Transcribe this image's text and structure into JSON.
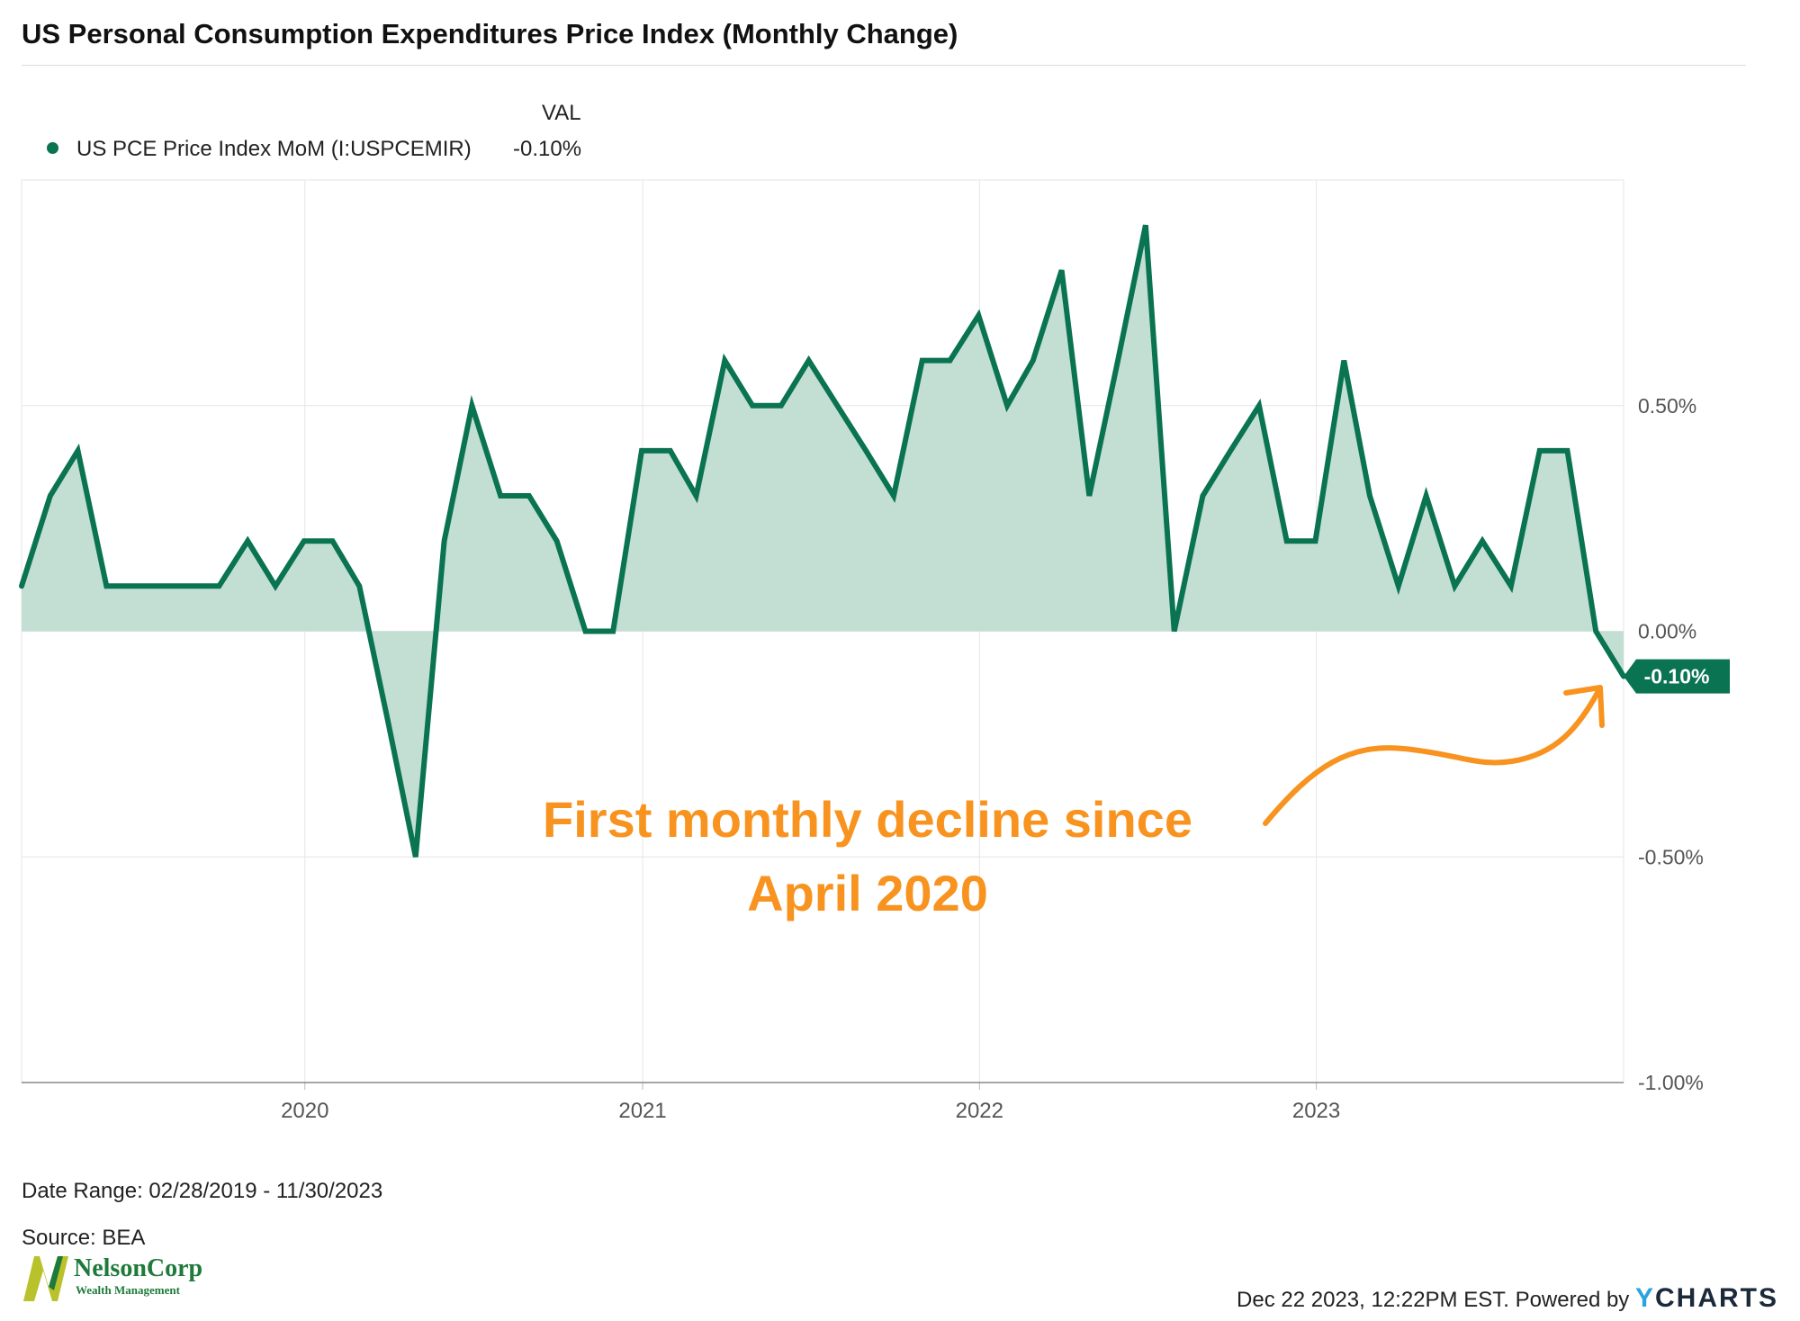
{
  "title": "US Personal Consumption Expenditures Price Index (Monthly Change)",
  "legend": {
    "header": "VAL",
    "series_label": "US PCE Price Index MoM (I:USPCEMIR)",
    "series_value": "-0.10%"
  },
  "colors": {
    "line": "#0a7351",
    "fill": "#c3dfd3",
    "annotation": "#f7931e",
    "grid": "#e6e6e6"
  },
  "annotation": {
    "line1": "First monthly decline since",
    "line2": "April 2020"
  },
  "footer": {
    "date_range": "Date Range: 02/28/2019 - 11/30/2023",
    "source": "Source: BEA",
    "powered": "Dec 22 2023, 12:22PM EST. Powered by",
    "brand": "CHARTS",
    "brand_letter": "Y"
  },
  "logo": {
    "name": "NelsonCorp",
    "subtitle": "Wealth Management"
  },
  "chart_data": {
    "type": "area",
    "title": "US Personal Consumption Expenditures Price Index (Monthly Change)",
    "series": [
      {
        "name": "US PCE Price Index MoM (I:USPCEMIR)",
        "x": [
          "2019-02-28",
          "2019-03-31",
          "2019-04-30",
          "2019-05-31",
          "2019-06-30",
          "2019-07-31",
          "2019-08-31",
          "2019-09-30",
          "2019-10-31",
          "2019-11-30",
          "2019-12-31",
          "2020-01-31",
          "2020-02-29",
          "2020-03-31",
          "2020-04-30",
          "2020-05-31",
          "2020-06-30",
          "2020-07-31",
          "2020-08-31",
          "2020-09-30",
          "2020-10-31",
          "2020-11-30",
          "2020-12-31",
          "2021-01-31",
          "2021-02-28",
          "2021-03-31",
          "2021-04-30",
          "2021-05-31",
          "2021-06-30",
          "2021-07-31",
          "2021-08-31",
          "2021-09-30",
          "2021-10-31",
          "2021-11-30",
          "2021-12-31",
          "2022-01-31",
          "2022-02-28",
          "2022-03-31",
          "2022-04-30",
          "2022-05-31",
          "2022-06-30",
          "2022-07-31",
          "2022-08-31",
          "2022-09-30",
          "2022-10-31",
          "2022-11-30",
          "2022-12-31",
          "2023-01-31",
          "2023-02-28",
          "2023-03-31",
          "2023-04-30",
          "2023-05-31",
          "2023-06-30",
          "2023-07-31",
          "2023-08-31",
          "2023-09-30",
          "2023-10-31",
          "2023-11-30"
        ],
        "values": [
          0.1,
          0.3,
          0.4,
          0.1,
          0.1,
          0.1,
          0.1,
          0.1,
          0.2,
          0.1,
          0.2,
          0.2,
          0.1,
          -0.2,
          -0.5,
          0.2,
          0.5,
          0.3,
          0.3,
          0.2,
          0.0,
          0.0,
          0.4,
          0.4,
          0.3,
          0.6,
          0.5,
          0.5,
          0.6,
          0.5,
          0.4,
          0.3,
          0.6,
          0.6,
          0.7,
          0.5,
          0.6,
          0.8,
          0.3,
          0.6,
          0.9,
          0.0,
          0.3,
          0.4,
          0.5,
          0.2,
          0.2,
          0.6,
          0.3,
          0.1,
          0.3,
          0.1,
          0.2,
          0.1,
          0.4,
          0.4,
          0.0,
          -0.1
        ]
      }
    ],
    "x_tick_labels": [
      "2020",
      "2021",
      "2022",
      "2023"
    ],
    "y_tick_labels": [
      "0.50%",
      "0.00%",
      "-0.50%",
      "-1.00%"
    ],
    "y_ticks": [
      0.5,
      0.0,
      -0.5,
      -1.0
    ],
    "ylim": [
      -1.0,
      1.0
    ],
    "last_value_label": "-0.10%",
    "grid": true,
    "legend_position": "top-left"
  }
}
